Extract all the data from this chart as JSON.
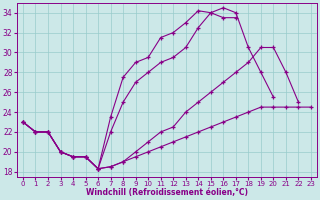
{
  "xlabel": "Windchill (Refroidissement éolien,°C)",
  "xlim": [
    -0.5,
    23.5
  ],
  "ylim": [
    17.5,
    35
  ],
  "xticks": [
    0,
    1,
    2,
    3,
    4,
    5,
    6,
    7,
    8,
    9,
    10,
    11,
    12,
    13,
    14,
    15,
    16,
    17,
    18,
    19,
    20,
    21,
    22,
    23
  ],
  "yticks": [
    18,
    20,
    22,
    24,
    26,
    28,
    30,
    32,
    34
  ],
  "bg_color": "#cce8e8",
  "line_color": "#880088",
  "grid_color": "#99cccc",
  "lines": [
    {
      "x": [
        0,
        1,
        2,
        3,
        4,
        5,
        6,
        7,
        8,
        9,
        10,
        11,
        12,
        13,
        14,
        15,
        16,
        17,
        18,
        19,
        20,
        21,
        22
      ],
      "y": [
        23,
        22,
        22,
        20,
        19.5,
        19.5,
        18.3,
        23.5,
        27.5,
        29,
        29.5,
        31.5,
        32,
        33,
        34.2,
        34,
        33.5,
        33.5,
        null,
        null,
        null,
        null,
        null
      ]
    },
    {
      "x": [
        0,
        1,
        2,
        3,
        4,
        5,
        6,
        7,
        8,
        9,
        10,
        11,
        12,
        13,
        14,
        15,
        16,
        17,
        18,
        19,
        20,
        21,
        22,
        23
      ],
      "y": [
        23,
        22,
        22,
        20,
        19.5,
        19.5,
        18.3,
        22,
        25,
        27,
        28,
        29,
        29.5,
        30.5,
        32.5,
        34,
        34.5,
        34,
        30.5,
        28,
        25.5,
        null,
        null,
        null
      ]
    },
    {
      "x": [
        0,
        1,
        2,
        3,
        4,
        5,
        6,
        7,
        8,
        9,
        10,
        11,
        12,
        13,
        14,
        15,
        16,
        17,
        18,
        19,
        20,
        21,
        22,
        23
      ],
      "y": [
        23,
        22,
        22,
        20,
        19.5,
        19.5,
        18.3,
        18.5,
        19,
        20,
        21,
        22,
        22.5,
        24,
        25,
        26,
        27,
        28,
        29,
        30.5,
        30.5,
        28,
        25,
        null
      ]
    },
    {
      "x": [
        0,
        1,
        2,
        3,
        4,
        5,
        6,
        7,
        8,
        9,
        10,
        11,
        12,
        13,
        14,
        15,
        16,
        17,
        18,
        19,
        20,
        21,
        22,
        23
      ],
      "y": [
        23,
        22,
        22,
        20,
        19.5,
        19.5,
        18.3,
        18.5,
        19,
        19.5,
        20,
        20.5,
        21,
        21.5,
        22,
        22.5,
        23,
        23.5,
        24,
        24.5,
        24.5,
        24.5,
        24.5,
        24.5
      ]
    }
  ]
}
